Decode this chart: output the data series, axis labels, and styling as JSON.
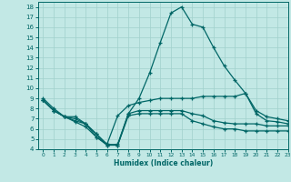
{
  "xlabel": "Humidex (Indice chaleur)",
  "bg_color": "#c2e8e5",
  "grid_color": "#a0d0cc",
  "line_color": "#006666",
  "xlim": [
    -0.5,
    23
  ],
  "ylim": [
    4,
    18.5
  ],
  "xticks": [
    0,
    1,
    2,
    3,
    4,
    5,
    6,
    7,
    8,
    9,
    10,
    11,
    12,
    13,
    14,
    15,
    16,
    17,
    18,
    19,
    20,
    21,
    22,
    23
  ],
  "yticks": [
    4,
    5,
    6,
    7,
    8,
    9,
    10,
    11,
    12,
    13,
    14,
    15,
    16,
    17,
    18
  ],
  "line1_x": [
    0,
    1,
    2,
    3,
    4,
    5,
    6,
    7,
    8,
    9,
    10,
    11,
    12,
    13,
    14,
    15,
    16,
    17,
    18,
    19,
    20,
    21,
    22,
    23
  ],
  "line1_y": [
    9.0,
    8.0,
    7.2,
    7.2,
    6.5,
    5.2,
    4.5,
    4.4,
    7.5,
    9.0,
    11.5,
    14.5,
    17.4,
    18.0,
    16.3,
    16.0,
    14.0,
    12.2,
    10.8,
    9.5,
    7.5,
    6.8,
    6.7,
    6.5
  ],
  "line2_x": [
    0,
    1,
    2,
    3,
    4,
    5,
    6,
    7,
    8,
    9,
    10,
    11,
    12,
    13,
    14,
    15,
    16,
    17,
    18,
    19,
    20,
    21,
    22,
    23
  ],
  "line2_y": [
    8.8,
    7.8,
    7.2,
    7.0,
    6.5,
    5.5,
    4.5,
    7.3,
    8.3,
    8.6,
    8.8,
    9.0,
    9.0,
    9.0,
    9.0,
    9.2,
    9.2,
    9.2,
    9.2,
    9.5,
    7.8,
    7.2,
    7.0,
    6.8
  ],
  "line3_x": [
    0,
    1,
    2,
    3,
    4,
    5,
    6,
    7,
    8,
    9,
    10,
    11,
    12,
    13,
    14,
    15,
    16,
    17,
    18,
    19,
    20,
    21,
    22,
    23
  ],
  "line3_y": [
    8.8,
    7.8,
    7.2,
    6.8,
    6.5,
    5.5,
    4.4,
    4.5,
    7.5,
    7.8,
    7.8,
    7.8,
    7.8,
    7.8,
    7.5,
    7.3,
    6.8,
    6.6,
    6.5,
    6.5,
    6.5,
    6.3,
    6.3,
    6.3
  ],
  "line4_x": [
    0,
    1,
    2,
    3,
    4,
    5,
    6,
    7,
    8,
    9,
    10,
    11,
    12,
    13,
    14,
    15,
    16,
    17,
    18,
    19,
    20,
    21,
    22,
    23
  ],
  "line4_y": [
    8.8,
    7.8,
    7.2,
    6.7,
    6.2,
    5.2,
    4.4,
    4.4,
    7.3,
    7.5,
    7.5,
    7.5,
    7.5,
    7.5,
    6.8,
    6.5,
    6.2,
    6.0,
    6.0,
    5.8,
    5.8,
    5.8,
    5.8,
    5.8
  ]
}
